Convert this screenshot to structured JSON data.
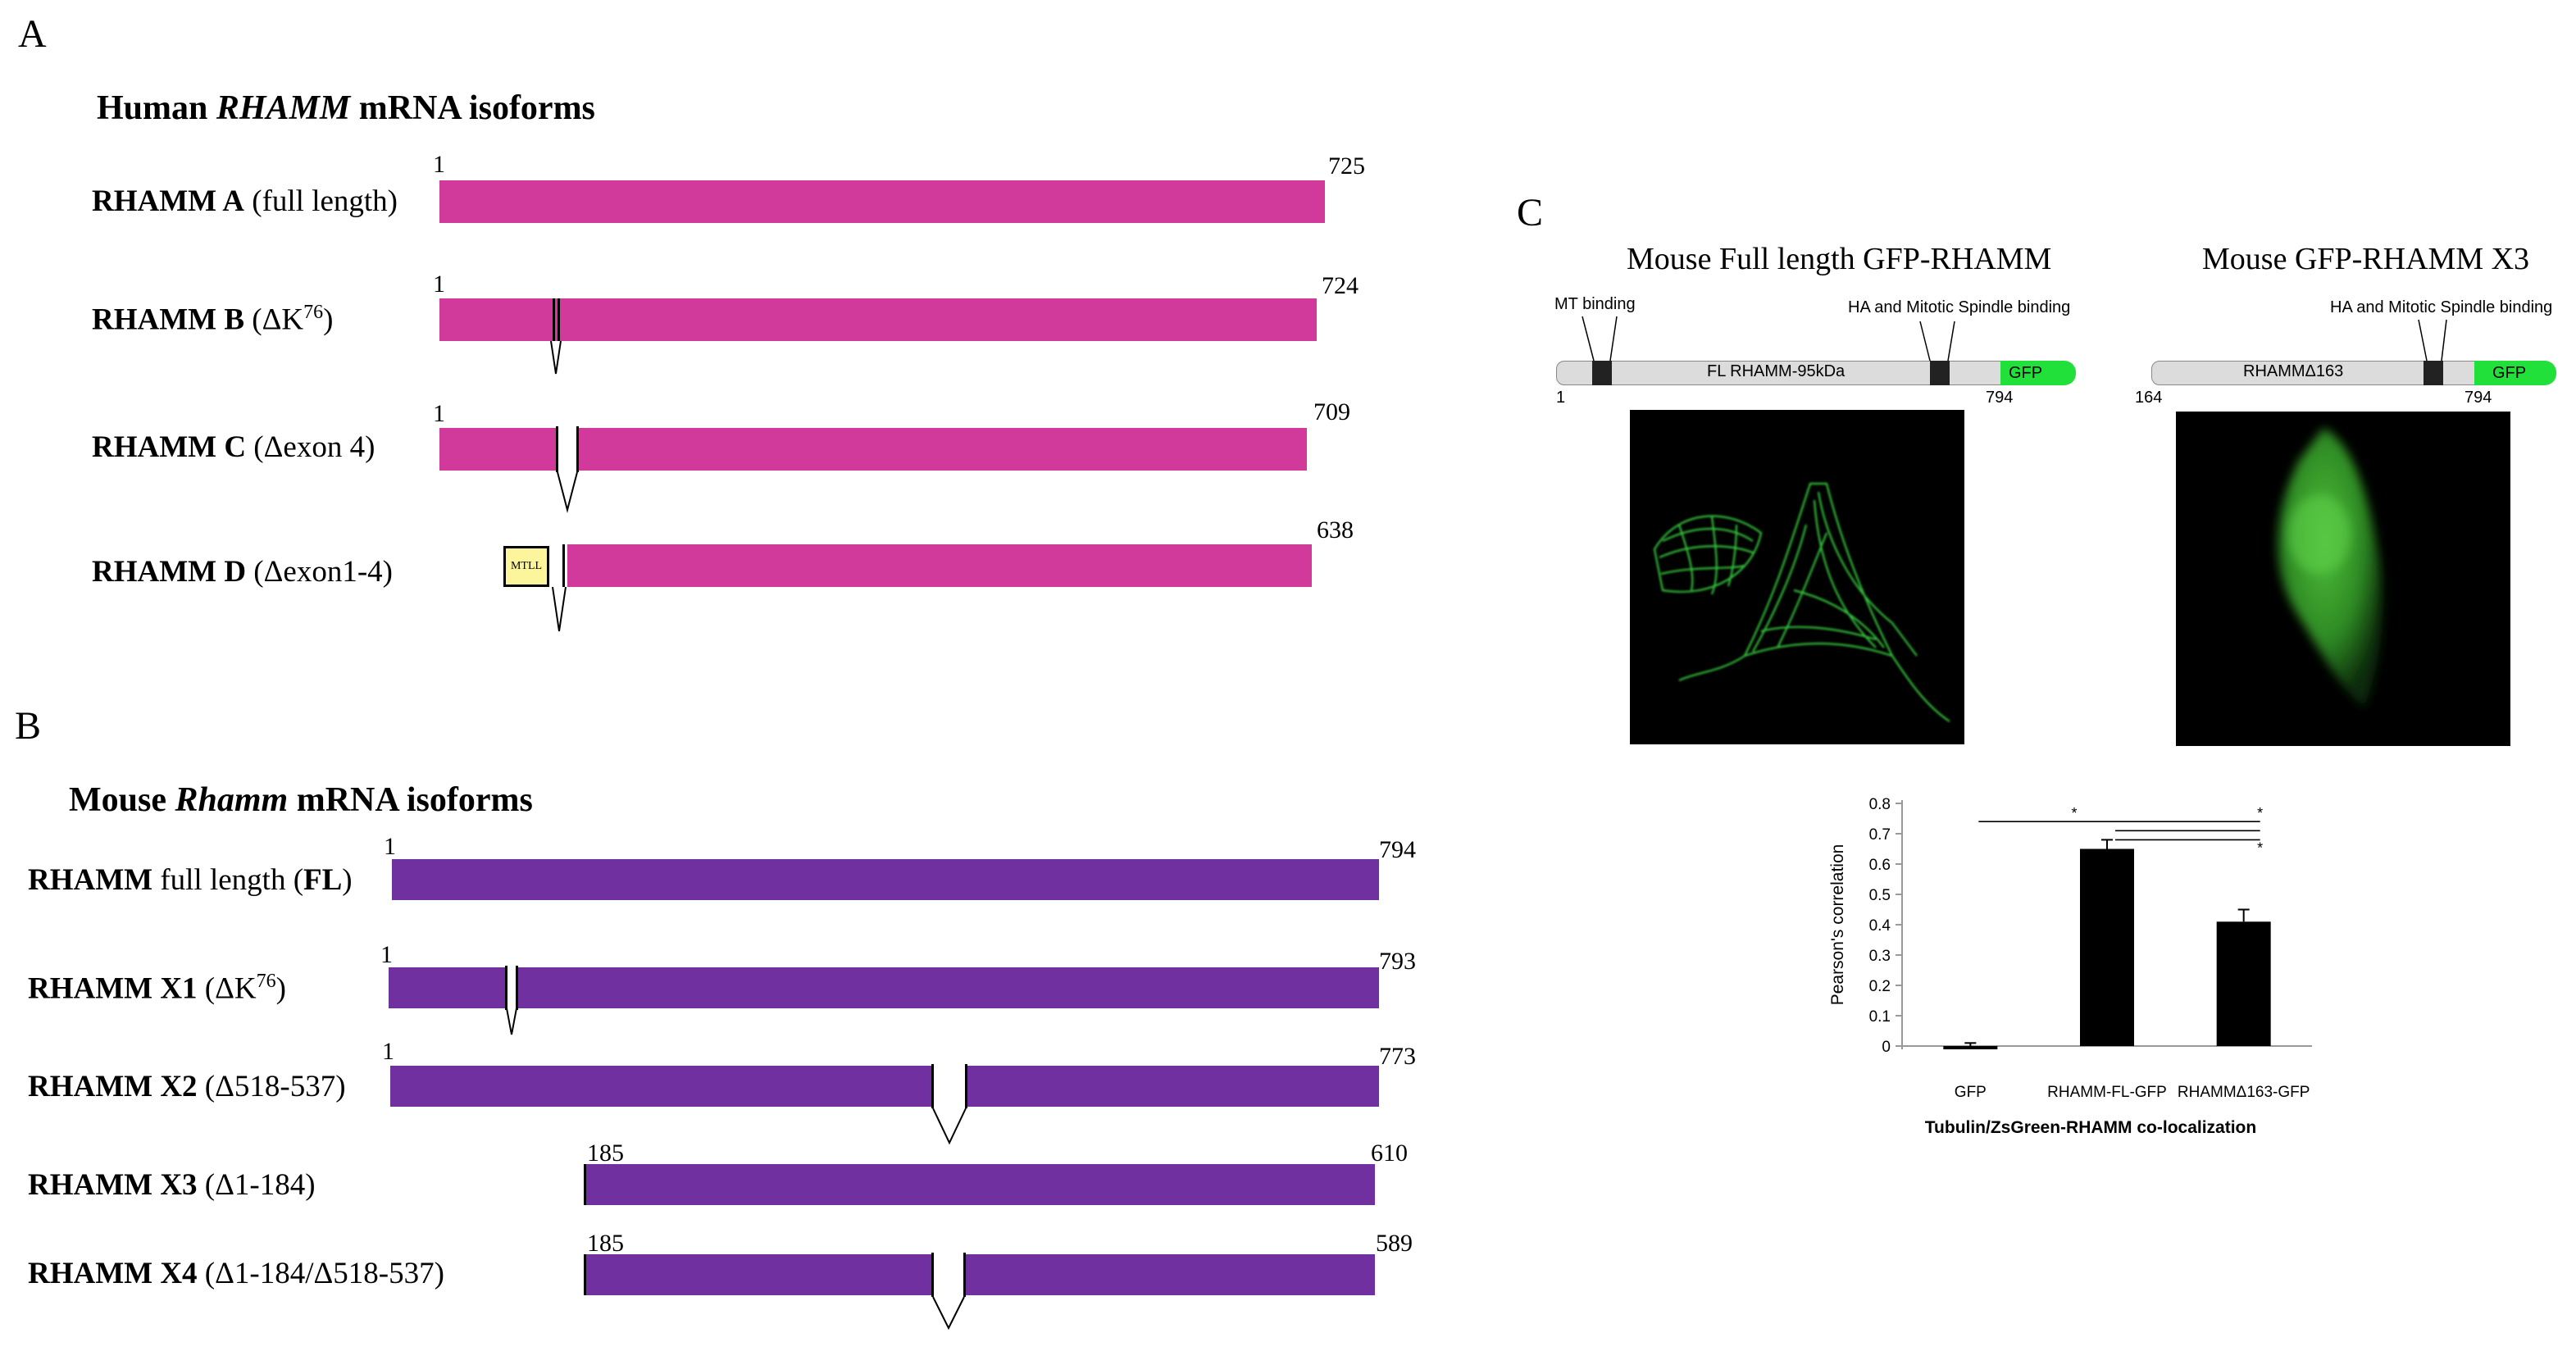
{
  "panel_a": {
    "letter": "A",
    "heading_pre": "Human ",
    "heading_ital": "RHAMM",
    "heading_post": " mRNA isoforms",
    "isoforms": [
      {
        "name": "RHAMM A",
        "desc": " (full length)",
        "start": "1",
        "end": "725"
      },
      {
        "name": "RHAMM B",
        "desc_pre": " (ΔK",
        "desc_sup": "76",
        "desc_post": ")",
        "start": "1",
        "end": "724"
      },
      {
        "name": "RHAMM C",
        "desc": " (Δexon 4)",
        "start": "1",
        "end": "709"
      },
      {
        "name": "RHAMM D",
        "desc": " (Δexon1-4)",
        "box": "MTLL",
        "end": "638"
      }
    ],
    "color": "#d1399a"
  },
  "panel_b": {
    "letter": "B",
    "heading_pre": "Mouse ",
    "heading_ital": "Rhamm",
    "heading_post": " mRNA isoforms",
    "isoforms": [
      {
        "name": "RHAMM",
        "desc_pre": " full length (",
        "desc_bold": "FL",
        "desc_post": ")",
        "start": "1",
        "end": "794"
      },
      {
        "name": "RHAMM X1",
        "desc_pre": " (ΔK",
        "desc_sup": "76",
        "desc_post": ")",
        "start": "1",
        "end": "793"
      },
      {
        "name": "RHAMM X2",
        "desc": " (Δ518-537)",
        "start": "1",
        "end": "773"
      },
      {
        "name": "RHAMM X3",
        "desc": " (Δ1-184)",
        "start": "185",
        "end": "610"
      },
      {
        "name": "RHAMM X4",
        "desc": " (Δ1-184/Δ518-537)",
        "start": "185",
        "end": "589"
      }
    ],
    "color": "#7030a0"
  },
  "panel_c": {
    "letter": "C",
    "left": {
      "title": "Mouse Full length GFP-RHAMM",
      "mt_label": "MT binding",
      "ha_label": "HA and Mitotic Spindle binding",
      "bar_label": "FL RHAMM-95kDa",
      "gfp": "GFP",
      "start": "1",
      "end": "794"
    },
    "right": {
      "title": "Mouse GFP-RHAMM X3",
      "ha_label": "HA and Mitotic Spindle binding",
      "bar_label": "RHAMMΔ163",
      "gfp": "GFP",
      "start": "164",
      "end": "794"
    },
    "colors": {
      "gfp": "#22e03a",
      "domain_bar": "#dcdcdc",
      "cell": "#36c23c"
    }
  },
  "chart_data": {
    "type": "bar",
    "categories": [
      "GFP",
      "RHAMM-FL-GFP",
      "RHAMMΔ163-GFP"
    ],
    "values": [
      -0.01,
      0.65,
      0.41
    ],
    "errors": [
      0.02,
      0.03,
      0.04
    ],
    "ylabel": "Pearson's correlation",
    "xlabel": "Tubulin/ZsGreen-RHAMM co-localization",
    "ylim": [
      0,
      0.8
    ],
    "yticks": [
      "0",
      "0.1",
      "0.2",
      "0.3",
      "0.4",
      "0.5",
      "0.6",
      "0.7",
      "0.8"
    ],
    "significance": [
      "*",
      "*",
      "*"
    ],
    "bar_color": "#000000"
  }
}
